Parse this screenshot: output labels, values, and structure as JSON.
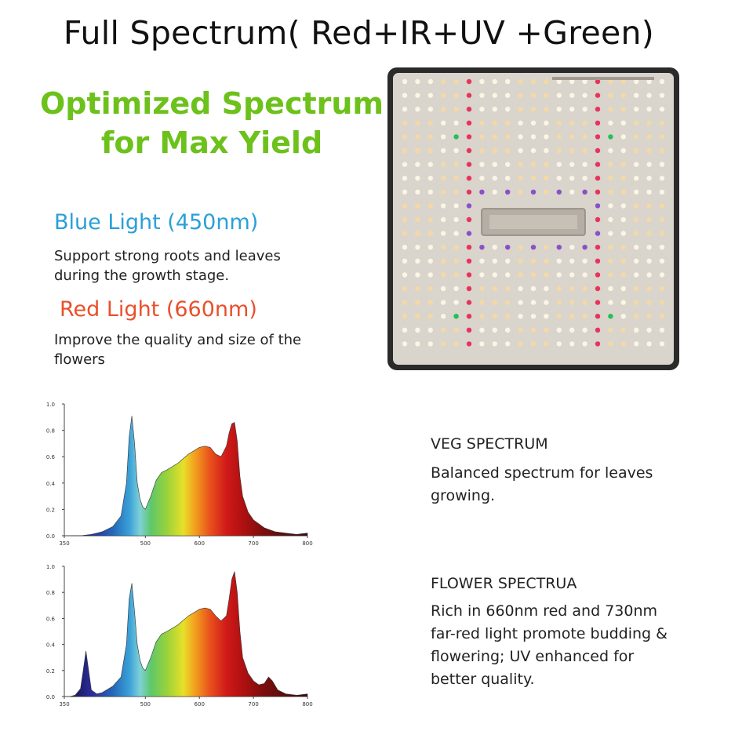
{
  "title": "Full Spectrum( Red+IR+UV +Green)",
  "headline": {
    "line1": "Optimized Spectrum",
    "line2": "for Max Yield"
  },
  "blue": {
    "heading": "Blue Light (450nm)",
    "desc_line1": "Support strong roots and leaves",
    "desc_line2": "during the growth stage.",
    "color": "#2a9fd8"
  },
  "red": {
    "heading": "Red Light (660nm)",
    "desc_line1": "Improve the quality and size of the",
    "desc_line2": "flowers",
    "color": "#e8502c"
  },
  "veg": {
    "title": "VEG SPECTRUM",
    "desc_line1": "Balanced spectrum for leaves",
    "desc_line2": "growing."
  },
  "flower": {
    "title": "FLOWER SPECTRUA",
    "desc_line1": "Rich in 660nm red and 730nm",
    "desc_line2": "far-red light promote budding &",
    "desc_line3": "flowering; UV enhanced for",
    "desc_line4": "better quality."
  },
  "colors": {
    "headline_green": "#6cc11b",
    "panel_body": "#d9d4cc",
    "panel_frame": "#2a2a2a"
  },
  "chart_data": [
    {
      "type": "area",
      "title": "",
      "xlabel": "",
      "ylabel": "",
      "xlim": [
        350,
        800
      ],
      "ylim": [
        0,
        1.0
      ],
      "x_ticks": [
        350,
        500,
        600,
        700,
        800
      ],
      "y_ticks": [
        "0.0",
        "0.2",
        "0.4",
        "0.6",
        "0.8",
        "1.0"
      ],
      "x": [
        360,
        380,
        400,
        420,
        440,
        455,
        465,
        470,
        475,
        480,
        485,
        490,
        495,
        500,
        510,
        520,
        530,
        540,
        560,
        580,
        600,
        610,
        620,
        630,
        640,
        650,
        655,
        660,
        665,
        670,
        675,
        680,
        690,
        700,
        720,
        740,
        760,
        780,
        800
      ],
      "values": [
        0.0,
        0.0,
        0.01,
        0.03,
        0.07,
        0.15,
        0.4,
        0.75,
        0.91,
        0.7,
        0.4,
        0.28,
        0.22,
        0.2,
        0.3,
        0.42,
        0.48,
        0.5,
        0.55,
        0.62,
        0.67,
        0.68,
        0.67,
        0.62,
        0.6,
        0.68,
        0.78,
        0.85,
        0.86,
        0.72,
        0.45,
        0.3,
        0.18,
        0.12,
        0.06,
        0.03,
        0.02,
        0.01,
        0.02
      ]
    },
    {
      "type": "area",
      "title": "",
      "xlabel": "",
      "ylabel": "",
      "xlim": [
        350,
        800
      ],
      "ylim": [
        0,
        1.0
      ],
      "x_ticks": [
        350,
        500,
        600,
        700,
        800
      ],
      "y_ticks": [
        "0.0",
        "0.2",
        "0.4",
        "0.6",
        "0.8",
        "1.0"
      ],
      "x": [
        360,
        370,
        380,
        385,
        390,
        395,
        400,
        410,
        420,
        440,
        455,
        465,
        470,
        475,
        480,
        485,
        490,
        495,
        500,
        510,
        520,
        530,
        540,
        560,
        580,
        600,
        610,
        620,
        630,
        640,
        650,
        655,
        660,
        665,
        670,
        675,
        680,
        690,
        700,
        710,
        720,
        728,
        735,
        745,
        760,
        780,
        800
      ],
      "values": [
        0.0,
        0.01,
        0.06,
        0.2,
        0.35,
        0.2,
        0.05,
        0.02,
        0.03,
        0.08,
        0.15,
        0.4,
        0.75,
        0.87,
        0.65,
        0.4,
        0.28,
        0.22,
        0.2,
        0.3,
        0.42,
        0.48,
        0.5,
        0.55,
        0.62,
        0.67,
        0.68,
        0.67,
        0.62,
        0.58,
        0.62,
        0.75,
        0.9,
        0.96,
        0.8,
        0.5,
        0.3,
        0.18,
        0.12,
        0.09,
        0.1,
        0.15,
        0.12,
        0.05,
        0.02,
        0.01,
        0.02
      ]
    }
  ]
}
